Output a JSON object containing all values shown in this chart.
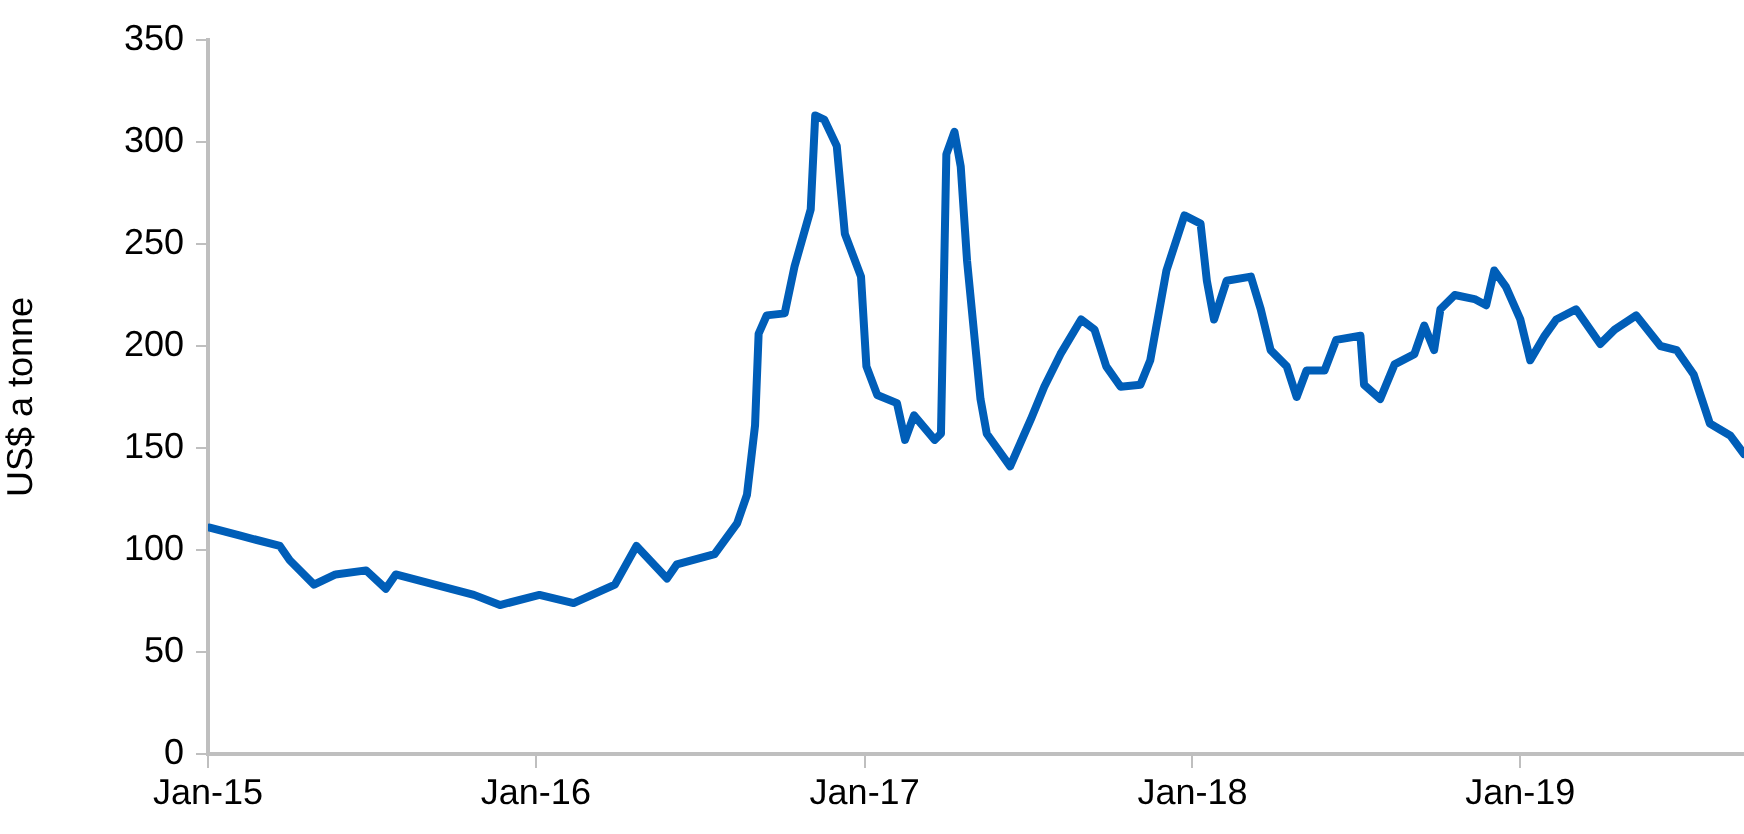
{
  "chart_data": {
    "type": "line",
    "ylabel": "US$ a tonne",
    "x": [
      "2015-01-03",
      "2015-02-06",
      "2015-03-22",
      "2015-04-02",
      "2015-04-29",
      "2015-05-23",
      "2015-06-26",
      "2015-07-18",
      "2015-07-29",
      "2015-10-24",
      "2015-11-22",
      "2016-01-05",
      "2016-02-12",
      "2016-03-29",
      "2016-04-22",
      "2016-05-26",
      "2016-06-06",
      "2016-07-18",
      "2016-08-12",
      "2016-08-23",
      "2016-09-01",
      "2016-09-05",
      "2016-09-14",
      "2016-10-04",
      "2016-10-15",
      "2016-11-02",
      "2016-11-07",
      "2016-11-17",
      "2016-12-01",
      "2016-12-10",
      "2016-12-28",
      "2017-01-03",
      "2017-01-15",
      "2017-02-06",
      "2017-02-15",
      "2017-02-25",
      "2017-03-20",
      "2017-03-27",
      "2017-04-02",
      "2017-04-11",
      "2017-04-18",
      "2017-04-25",
      "2017-05-10",
      "2017-05-17",
      "2017-06-12",
      "2017-07-05",
      "2017-07-20",
      "2017-08-07",
      "2017-08-30",
      "2017-09-14",
      "2017-09-27",
      "2017-10-13",
      "2017-11-04",
      "2017-11-15",
      "2017-12-03",
      "2017-12-23",
      "2018-01-10",
      "2018-01-17",
      "2018-01-25",
      "2018-02-08",
      "2018-03-07",
      "2018-03-18",
      "2018-03-29",
      "2018-04-16",
      "2018-04-27",
      "2018-05-08",
      "2018-05-28",
      "2018-06-10",
      "2018-07-07",
      "2018-07-11",
      "2018-07-29",
      "2018-08-14",
      "2018-09-05",
      "2018-09-16",
      "2018-09-27",
      "2018-10-04",
      "2018-10-20",
      "2018-11-11",
      "2018-11-24",
      "2018-12-03",
      "2018-12-16",
      "2019-01-01",
      "2019-01-12",
      "2019-01-28",
      "2019-02-10",
      "2019-03-04",
      "2019-03-31",
      "2019-04-16",
      "2019-05-10",
      "2019-06-06",
      "2019-06-24",
      "2019-07-13",
      "2019-07-31",
      "2019-08-23",
      "2019-09-07"
    ],
    "series": [
      {
        "color": "#005eb8",
        "values": [
          111,
          107,
          102,
          95,
          83,
          88,
          90,
          81,
          88,
          78,
          73,
          78,
          74,
          83,
          102,
          86,
          93,
          98,
          113,
          127,
          161,
          206,
          215,
          216,
          239,
          267,
          313,
          311,
          298,
          255,
          234,
          190,
          176,
          172,
          154,
          166,
          154,
          157,
          294,
          305,
          288,
          242,
          174,
          157,
          141,
          164,
          180,
          196,
          213,
          208,
          190,
          180,
          181,
          193,
          237,
          264,
          260,
          232,
          213,
          232,
          234,
          218,
          198,
          190,
          175,
          188,
          188,
          203,
          205,
          181,
          174,
          191,
          196,
          210,
          198,
          218,
          225,
          223,
          220,
          237,
          229,
          213,
          193,
          205,
          213,
          218,
          201,
          208,
          215,
          200,
          198,
          186,
          162,
          156,
          147
        ]
      }
    ],
    "xlim": [
      "2015-01-01",
      "2019-09-07"
    ],
    "xticks": [
      {
        "value": "2015-01-01",
        "label": "Jan-15"
      },
      {
        "value": "2016-01-01",
        "label": "Jan-16"
      },
      {
        "value": "2017-01-01",
        "label": "Jan-17"
      },
      {
        "value": "2018-01-01",
        "label": "Jan-18"
      },
      {
        "value": "2019-01-01",
        "label": "Jan-19"
      }
    ],
    "ylim": [
      0,
      350
    ],
    "yticks": [
      0,
      50,
      100,
      150,
      200,
      250,
      300,
      350
    ],
    "grid": false,
    "legend": false,
    "marker": "none",
    "line_style": "solid"
  }
}
